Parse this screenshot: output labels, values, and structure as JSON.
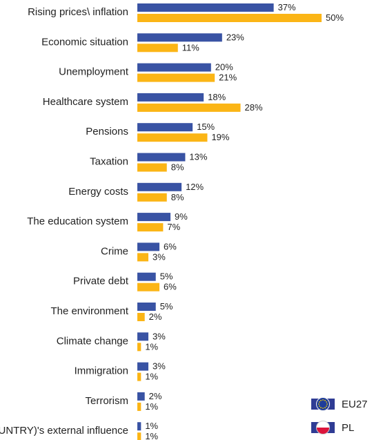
{
  "chart_data": {
    "type": "bar",
    "orientation": "horizontal",
    "categories": [
      "Rising prices\\ inflation",
      "Economic situation",
      "Unemployment",
      "Healthcare system",
      "Pensions",
      "Taxation",
      "Energy costs",
      "The education system",
      "Crime",
      "Private debt",
      "The environment",
      "Climate change",
      "Immigration",
      "Terrorism",
      "(OUR COUNTRY)'s external influence"
    ],
    "series": [
      {
        "name": "EU27",
        "color": "#3953a4",
        "values": [
          37,
          23,
          20,
          18,
          15,
          13,
          12,
          9,
          6,
          5,
          5,
          3,
          3,
          2,
          1
        ]
      },
      {
        "name": "PL",
        "color": "#fbb516",
        "values": [
          50,
          11,
          21,
          28,
          19,
          8,
          8,
          7,
          3,
          6,
          2,
          1,
          1,
          1,
          1
        ]
      }
    ],
    "value_suffix": "%",
    "xlim": [
      0,
      50
    ],
    "grid": false,
    "legend": {
      "position": "bottom-right",
      "icons": {
        "EU27": "eu-flag-icon",
        "PL": "poland-flag-icon"
      }
    }
  }
}
